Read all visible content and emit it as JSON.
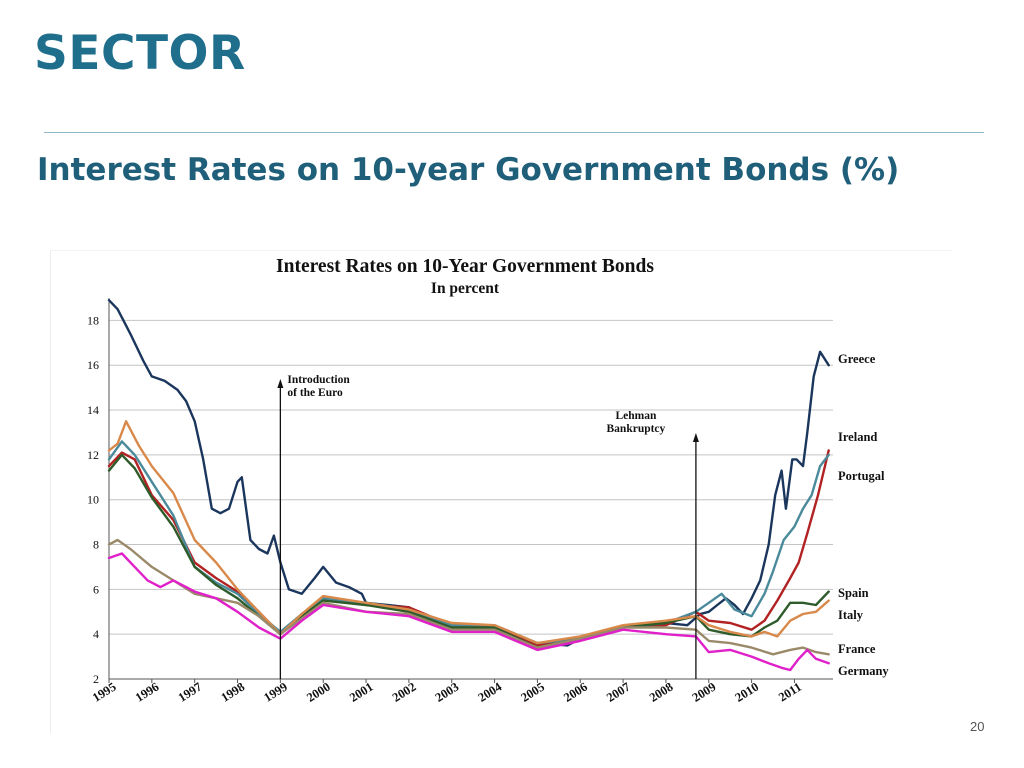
{
  "slide": {
    "title": "SECTOR",
    "subtitle": "Interest Rates on 10-year Government Bonds (%)",
    "page_number": "20"
  },
  "chart_data": {
    "type": "line",
    "title": "Interest Rates on 10-Year Government Bonds",
    "subtitle": "In percent",
    "xlabel": "",
    "ylabel": "",
    "xlim": [
      1995,
      2011.9
    ],
    "ylim": [
      2,
      19
    ],
    "y_ticks": [
      2,
      4,
      6,
      8,
      10,
      12,
      14,
      16,
      18
    ],
    "x_ticks": [
      "1995",
      "1996",
      "1997",
      "1998",
      "1999",
      "2000",
      "2001",
      "2002",
      "2003",
      "2004",
      "2005",
      "2006",
      "2007",
      "2008",
      "2009",
      "2010",
      "2011"
    ],
    "grid": true,
    "legend": "inline labels at right end of lines",
    "annotations": [
      {
        "text_lines": [
          "Introduction",
          "of the Euro"
        ],
        "x": 1999.0
      },
      {
        "text_lines": [
          "Lehman",
          "Bankruptcy"
        ],
        "x": 2008.7
      }
    ],
    "series": [
      {
        "name": "Greece",
        "color": "#1b365d",
        "x": [
          1995.0,
          1995.2,
          1995.5,
          1995.8,
          1996.0,
          1996.3,
          1996.6,
          1996.8,
          1997.0,
          1997.2,
          1997.4,
          1997.6,
          1997.8,
          1998.0,
          1998.1,
          1998.3,
          1998.5,
          1998.7,
          1998.85,
          1999.0,
          1999.2,
          1999.5,
          1999.8,
          2000.0,
          2000.3,
          2000.6,
          2000.9,
          2001.0,
          2001.5,
          2002.0,
          2002.5,
          2003.0,
          2004.0,
          2005.0,
          2005.7,
          2006.0,
          2007.0,
          2008.0,
          2008.5,
          2008.8,
          2009.0,
          2009.2,
          2009.4,
          2009.6,
          2009.8,
          2010.0,
          2010.2,
          2010.4,
          2010.55,
          2010.7,
          2010.8,
          2010.95,
          2011.05,
          2011.2,
          2011.3,
          2011.45,
          2011.6,
          2011.7,
          2011.8
        ],
        "values": [
          18.9,
          18.5,
          17.4,
          16.2,
          15.5,
          15.3,
          14.9,
          14.4,
          13.5,
          11.8,
          9.6,
          9.4,
          9.6,
          10.8,
          11.0,
          8.2,
          7.8,
          7.6,
          8.4,
          7.2,
          6.0,
          5.8,
          6.5,
          7.0,
          6.3,
          6.1,
          5.8,
          5.4,
          5.3,
          5.2,
          4.6,
          4.3,
          4.3,
          3.6,
          3.5,
          3.8,
          4.3,
          4.5,
          4.4,
          4.9,
          5.0,
          5.3,
          5.6,
          5.3,
          4.9,
          5.6,
          6.4,
          8.0,
          10.2,
          11.3,
          9.6,
          11.8,
          11.8,
          11.5,
          13.0,
          15.5,
          16.6,
          16.3,
          16.0
        ]
      },
      {
        "name": "Ireland",
        "color": "#b22222",
        "x": [
          1995.0,
          1995.3,
          1995.6,
          1996.0,
          1996.5,
          1997.0,
          1997.5,
          1998.0,
          1998.5,
          1999.0,
          1999.5,
          2000.0,
          2001.0,
          2002.0,
          2003.0,
          2004.0,
          2005.0,
          2006.0,
          2007.0,
          2008.0,
          2008.7,
          2009.0,
          2009.5,
          2010.0,
          2010.3,
          2010.6,
          2010.9,
          2011.1,
          2011.3,
          2011.55,
          2011.8
        ],
        "values": [
          11.5,
          12.1,
          11.8,
          10.2,
          9.1,
          7.2,
          6.5,
          5.9,
          5.0,
          4.0,
          4.9,
          5.6,
          5.3,
          5.2,
          4.4,
          4.3,
          3.5,
          3.8,
          4.3,
          4.4,
          5.0,
          4.6,
          4.5,
          4.2,
          4.6,
          5.5,
          6.5,
          7.2,
          8.5,
          10.2,
          12.2
        ]
      },
      {
        "name": "Portugal",
        "color": "#4a8a9a",
        "x": [
          1995.0,
          1995.3,
          1995.6,
          1996.0,
          1996.5,
          1997.0,
          1997.5,
          1998.0,
          1998.5,
          1999.0,
          1999.5,
          2000.0,
          2001.0,
          2002.0,
          2003.0,
          2004.0,
          2005.0,
          2006.0,
          2007.0,
          2008.0,
          2008.7,
          2009.0,
          2009.3,
          2009.6,
          2010.0,
          2010.3,
          2010.5,
          2010.75,
          2011.0,
          2011.2,
          2011.4,
          2011.6,
          2011.8
        ],
        "values": [
          11.8,
          12.6,
          12.0,
          10.8,
          9.3,
          7.0,
          6.3,
          5.8,
          4.9,
          4.1,
          4.9,
          5.6,
          5.4,
          5.1,
          4.4,
          4.4,
          3.6,
          3.8,
          4.3,
          4.5,
          5.0,
          5.4,
          5.8,
          5.1,
          4.8,
          5.8,
          6.8,
          8.2,
          8.8,
          9.6,
          10.2,
          11.5,
          12.0
        ]
      },
      {
        "name": "Spain",
        "color": "#2e5b2a",
        "x": [
          1995.0,
          1995.3,
          1995.6,
          1996.0,
          1996.5,
          1997.0,
          1997.5,
          1998.0,
          1998.5,
          1999.0,
          1999.5,
          2000.0,
          2001.0,
          2002.0,
          2003.0,
          2004.0,
          2005.0,
          2006.0,
          2007.0,
          2008.0,
          2008.7,
          2009.0,
          2009.5,
          2010.0,
          2010.3,
          2010.6,
          2010.9,
          2011.2,
          2011.5,
          2011.8
        ],
        "values": [
          11.3,
          12.0,
          11.4,
          10.1,
          8.8,
          7.0,
          6.2,
          5.6,
          4.8,
          4.0,
          4.8,
          5.5,
          5.3,
          5.0,
          4.3,
          4.3,
          3.4,
          3.8,
          4.3,
          4.5,
          4.8,
          4.2,
          4.0,
          3.9,
          4.3,
          4.6,
          5.4,
          5.4,
          5.3,
          5.9
        ]
      },
      {
        "name": "Italy",
        "color": "#d9894a",
        "x": [
          1995.0,
          1995.2,
          1995.4,
          1995.7,
          1996.0,
          1996.5,
          1997.0,
          1997.5,
          1998.0,
          1998.5,
          1999.0,
          1999.5,
          2000.0,
          2001.0,
          2002.0,
          2003.0,
          2004.0,
          2005.0,
          2006.0,
          2007.0,
          2008.0,
          2008.7,
          2009.0,
          2009.5,
          2010.0,
          2010.3,
          2010.6,
          2010.9,
          2011.2,
          2011.5,
          2011.8
        ],
        "values": [
          12.2,
          12.5,
          13.5,
          12.4,
          11.5,
          10.3,
          8.2,
          7.2,
          6.0,
          5.0,
          4.0,
          4.9,
          5.7,
          5.4,
          5.1,
          4.5,
          4.4,
          3.6,
          3.9,
          4.4,
          4.6,
          4.8,
          4.4,
          4.1,
          3.9,
          4.1,
          3.9,
          4.6,
          4.9,
          5.0,
          5.5
        ]
      },
      {
        "name": "France",
        "color": "#9a8a6a",
        "x": [
          1995.0,
          1995.2,
          1995.5,
          1996.0,
          1996.5,
          1997.0,
          1997.5,
          1998.0,
          1998.5,
          1999.0,
          1999.5,
          2000.0,
          2001.0,
          2002.0,
          2003.0,
          2004.0,
          2005.0,
          2006.0,
          2007.0,
          2008.0,
          2008.7,
          2009.0,
          2009.5,
          2010.0,
          2010.5,
          2010.9,
          2011.2,
          2011.5,
          2011.8
        ],
        "values": [
          8.0,
          8.2,
          7.8,
          7.0,
          6.4,
          5.8,
          5.6,
          5.4,
          4.8,
          4.0,
          4.7,
          5.4,
          5.0,
          4.9,
          4.2,
          4.2,
          3.4,
          3.8,
          4.3,
          4.3,
          4.2,
          3.7,
          3.6,
          3.4,
          3.1,
          3.3,
          3.4,
          3.2,
          3.1
        ]
      },
      {
        "name": "Germany",
        "color": "#e020c8",
        "x": [
          1995.0,
          1995.3,
          1995.6,
          1995.9,
          1996.2,
          1996.5,
          1997.0,
          1997.5,
          1998.0,
          1998.5,
          1999.0,
          1999.5,
          2000.0,
          2001.0,
          2002.0,
          2003.0,
          2004.0,
          2005.0,
          2006.0,
          2007.0,
          2008.0,
          2008.7,
          2009.0,
          2009.5,
          2010.0,
          2010.4,
          2010.7,
          2010.9,
          2011.1,
          2011.3,
          2011.5,
          2011.8
        ],
        "values": [
          7.4,
          7.6,
          7.0,
          6.4,
          6.1,
          6.4,
          5.9,
          5.6,
          5.0,
          4.3,
          3.8,
          4.6,
          5.3,
          5.0,
          4.8,
          4.1,
          4.1,
          3.3,
          3.7,
          4.2,
          4.0,
          3.9,
          3.2,
          3.3,
          3.0,
          2.7,
          2.5,
          2.4,
          2.9,
          3.3,
          2.9,
          2.7
        ]
      }
    ],
    "labels": {
      "Greece": "Greece",
      "Ireland": "Ireland",
      "Portugal": "Portugal",
      "Spain": "Spain",
      "Italy": "Italy",
      "France": "France",
      "Germany": "Germany"
    }
  }
}
